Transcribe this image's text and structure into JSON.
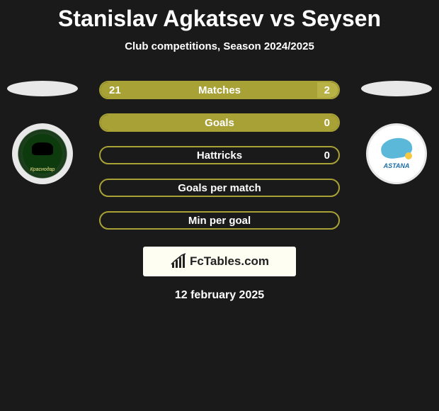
{
  "title": "Stanislav Agkatsev vs Seysen",
  "subtitle": "Club competitions, Season 2024/2025",
  "date": "12 february 2025",
  "footer_brand": "FcTables.com",
  "left_badge_text": "Краснодар",
  "right_badge_text": "ASTANA",
  "colors": {
    "primary": "#a8a136",
    "primary_light": "#b8b146",
    "background": "#1a1a1a",
    "badge_bg": "#e8e8e8"
  },
  "stats": [
    {
      "label": "Matches",
      "left_value": "21",
      "right_value": "2",
      "left_pct": 91,
      "right_pct": 9,
      "show_values": true
    },
    {
      "label": "Goals",
      "left_value": "0",
      "right_value": "0",
      "left_pct": 100,
      "right_pct": 0,
      "show_values": true,
      "show_left_value": false
    },
    {
      "label": "Hattricks",
      "left_value": "0",
      "right_value": "0",
      "left_pct": 0,
      "right_pct": 0,
      "show_values": true,
      "show_left_value": false
    },
    {
      "label": "Goals per match",
      "left_value": "",
      "right_value": "",
      "left_pct": 0,
      "right_pct": 0,
      "show_values": false
    },
    {
      "label": "Min per goal",
      "left_value": "",
      "right_value": "",
      "left_pct": 0,
      "right_pct": 0,
      "show_values": false
    }
  ]
}
